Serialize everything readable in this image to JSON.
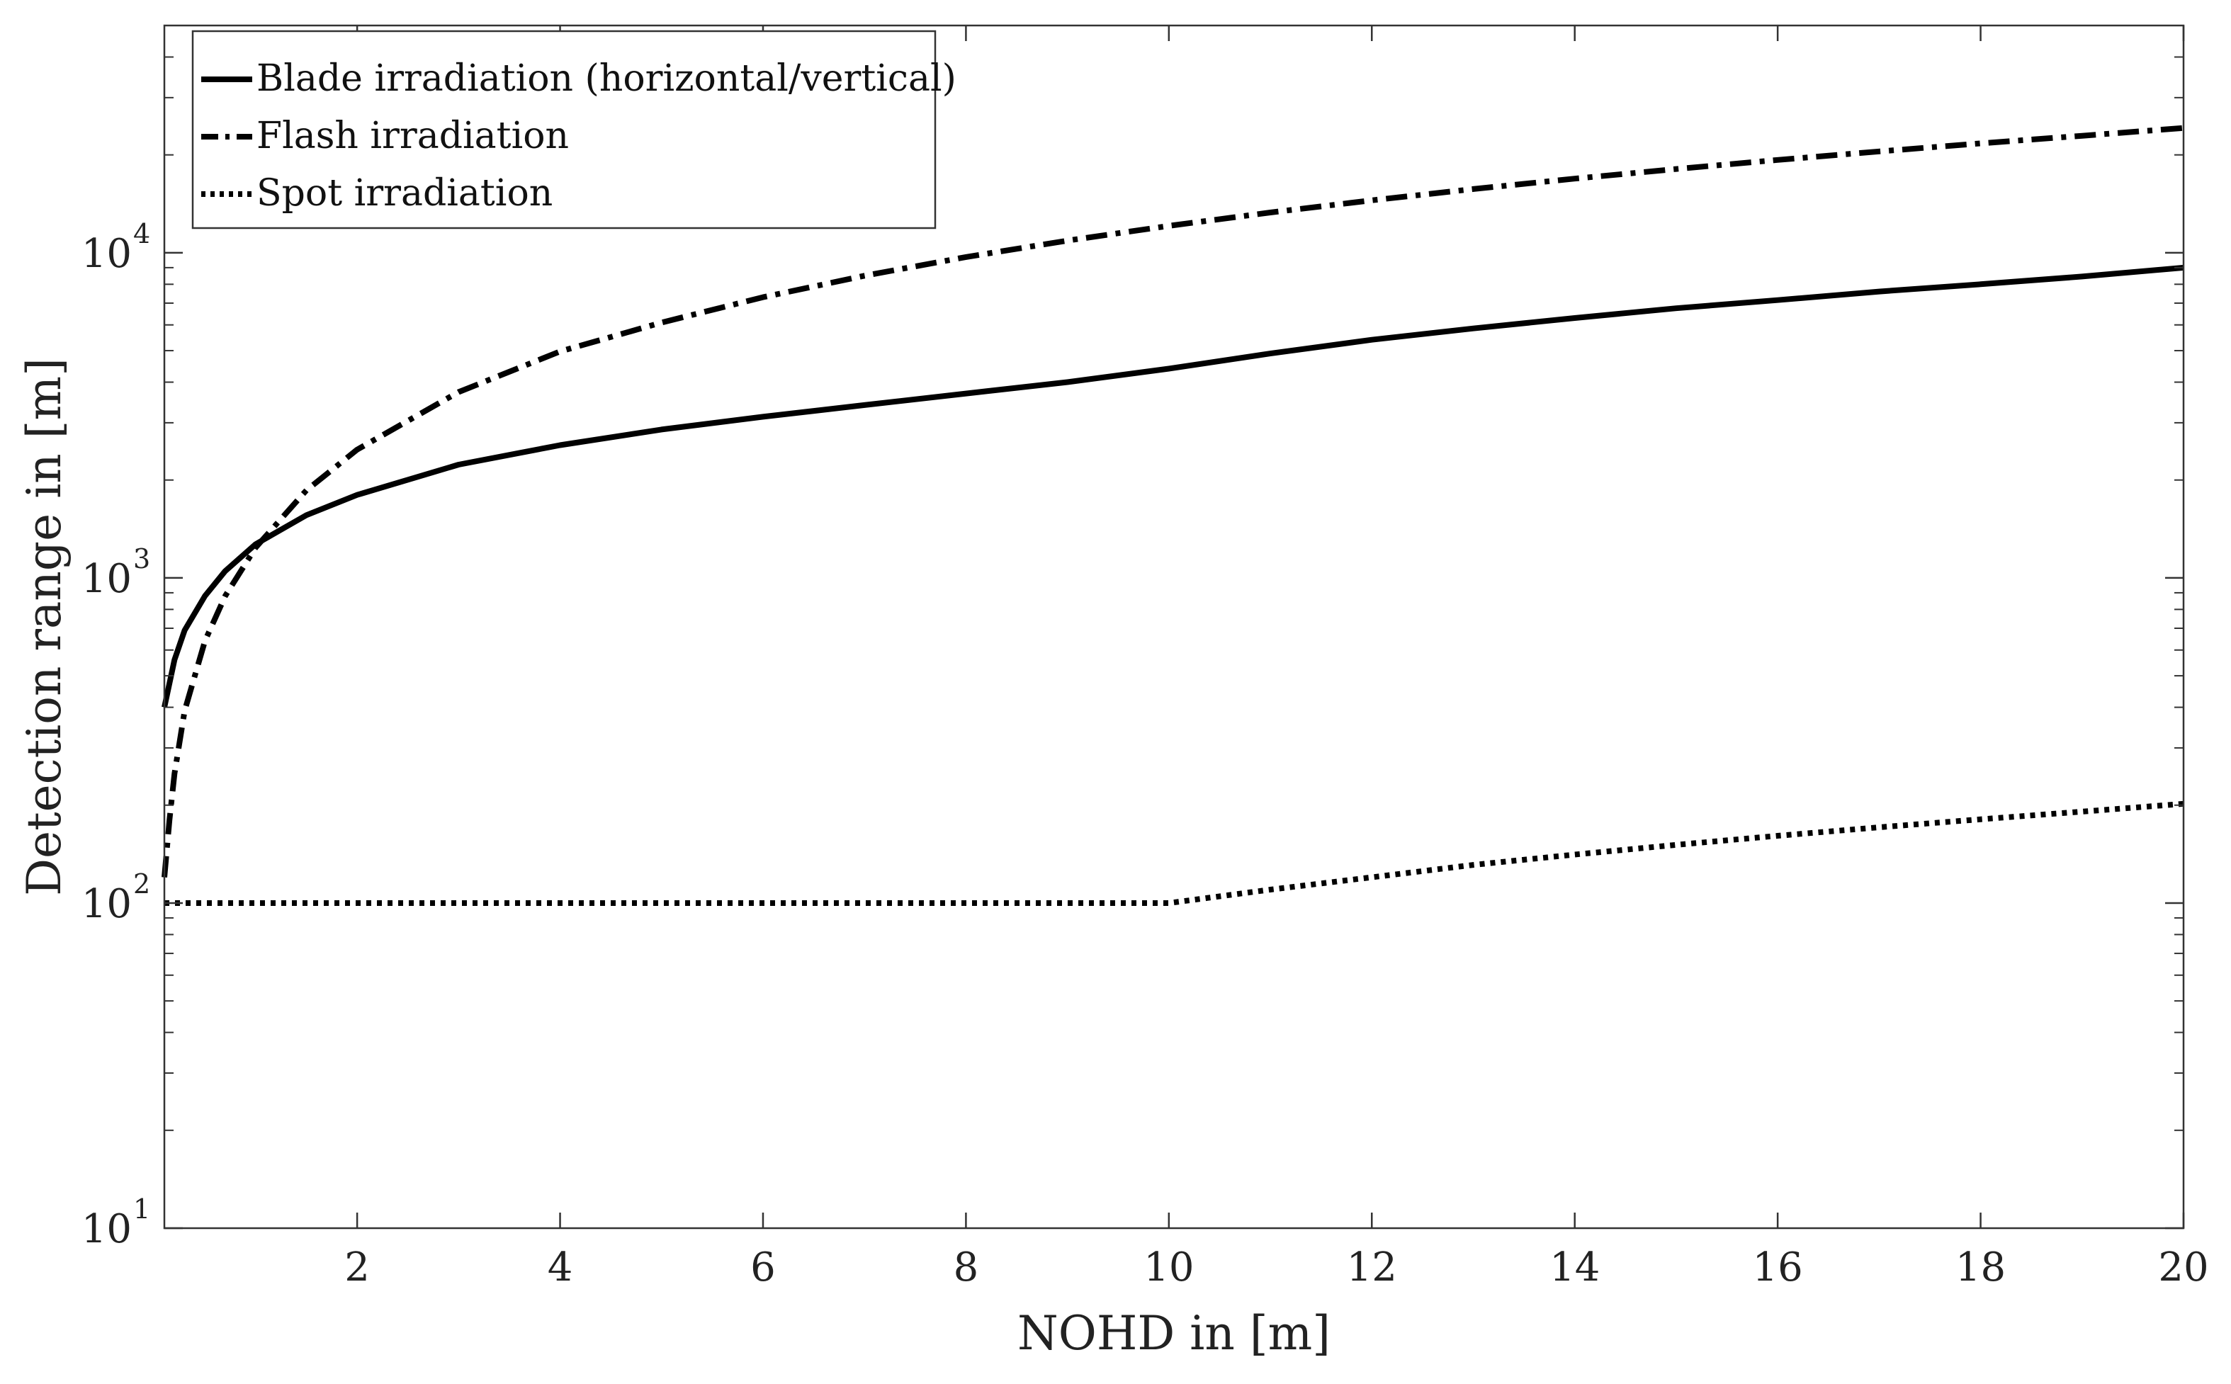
{
  "chart_data": {
    "type": "line",
    "title": "",
    "xlabel": "NOHD in [m]",
    "ylabel": "Detection range in [m]",
    "xlim": [
      0.1,
      20
    ],
    "ylim": [
      10,
      50000
    ],
    "yscale": "log",
    "grid": false,
    "legend_position": "top-left",
    "x_ticks": [
      2,
      4,
      6,
      8,
      10,
      12,
      14,
      16,
      18,
      20
    ],
    "x_tick_labels": [
      "2",
      "4",
      "6",
      "8",
      "10",
      "12",
      "14",
      "16",
      "18",
      "20"
    ],
    "y_ticks": [
      10,
      100,
      1000,
      10000
    ],
    "y_tick_labels": [
      {
        "base": "10",
        "exp": "1"
      },
      {
        "base": "10",
        "exp": "2"
      },
      {
        "base": "10",
        "exp": "3"
      },
      {
        "base": "10",
        "exp": "4"
      }
    ],
    "series": [
      {
        "name": "Blade irradiation (horizontal/vertical)",
        "style": "solid",
        "x": [
          0.1,
          0.2,
          0.3,
          0.5,
          0.7,
          1,
          1.5,
          2,
          3,
          4,
          5,
          6,
          7,
          8,
          9,
          10,
          11,
          12,
          13,
          14,
          15,
          16,
          17,
          18,
          19,
          20
        ],
        "y": [
          400,
          560,
          690,
          880,
          1050,
          1270,
          1560,
          1800,
          2230,
          2560,
          2860,
          3130,
          3400,
          3690,
          4000,
          4400,
          4900,
          5400,
          5850,
          6300,
          6750,
          7150,
          7600,
          8000,
          8450,
          9000
        ]
      },
      {
        "name": "Flash irradiation",
        "style": "dashdot",
        "x": [
          0.1,
          0.15,
          0.2,
          0.3,
          0.5,
          0.7,
          1,
          1.5,
          2,
          3,
          4,
          5,
          6,
          7,
          8,
          9,
          10,
          11,
          12,
          13,
          14,
          15,
          16,
          17,
          18,
          19,
          20
        ],
        "y": [
          120,
          180,
          250,
          390,
          640,
          880,
          1240,
          1860,
          2480,
          3730,
          4970,
          6100,
          7300,
          8500,
          9700,
          10900,
          12100,
          13300,
          14500,
          15700,
          16900,
          18100,
          19300,
          20500,
          21700,
          22900,
          24200
        ]
      },
      {
        "name": "Spot irradiation",
        "style": "dotted",
        "x": [
          0.1,
          1,
          2,
          4,
          6,
          8,
          10,
          11,
          12,
          13,
          14,
          15,
          16,
          17,
          18,
          19,
          20
        ],
        "y": [
          100,
          100,
          100,
          100,
          100,
          100,
          100,
          110,
          120,
          131,
          141,
          151,
          161,
          171,
          181,
          191,
          202
        ]
      }
    ]
  }
}
